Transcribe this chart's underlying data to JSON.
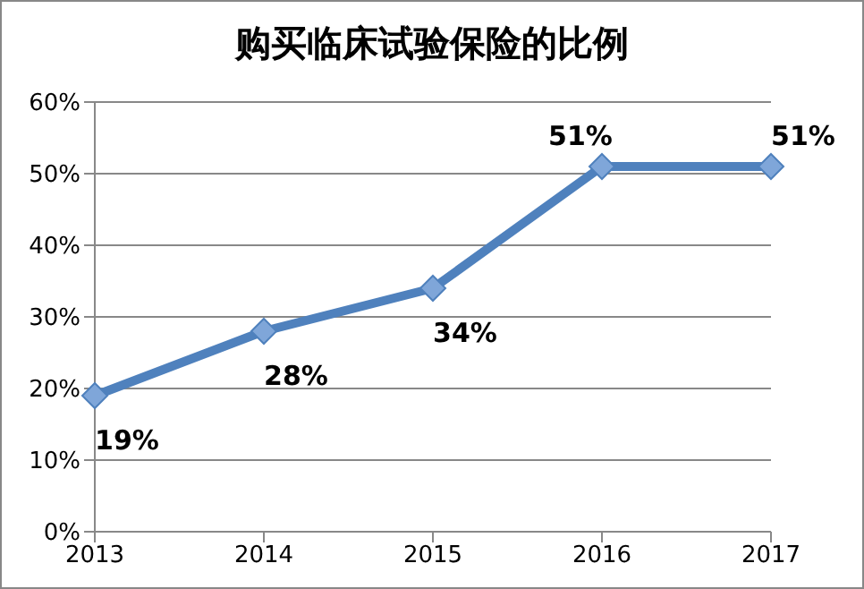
{
  "chart_data": {
    "type": "line",
    "title": "购买临床试验保险的比例",
    "categories": [
      "2013",
      "2014",
      "2015",
      "2016",
      "2017"
    ],
    "series": [
      {
        "color": "#4f81bd",
        "values": [
          19,
          28,
          34,
          51,
          51
        ],
        "value_labels": [
          "19%",
          "28%",
          "34%",
          "51%",
          "51%"
        ]
      }
    ],
    "ylim": [
      0,
      60
    ],
    "yticks": [
      {
        "value": 0,
        "label": "0%"
      },
      {
        "value": 10,
        "label": "10%"
      },
      {
        "value": 20,
        "label": "20%"
      },
      {
        "value": 30,
        "label": "30%"
      },
      {
        "value": 40,
        "label": "40%"
      },
      {
        "value": 50,
        "label": "50%"
      },
      {
        "value": 60,
        "label": "60%"
      }
    ],
    "grid": "y",
    "legend": false,
    "marker": "diamond",
    "line_style": "solid"
  }
}
